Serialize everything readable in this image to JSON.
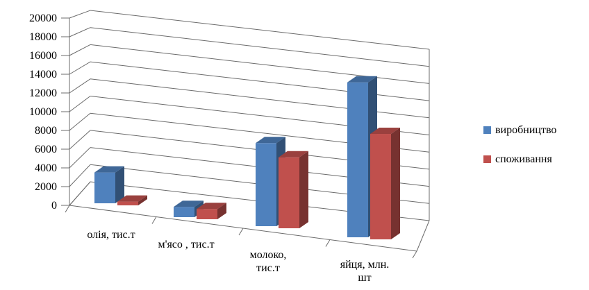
{
  "chart_data": {
    "type": "bar",
    "title": "",
    "xlabel": "",
    "ylabel": "",
    "ylim": [
      0,
      20000
    ],
    "yticks": [
      0,
      2000,
      4000,
      6000,
      8000,
      10000,
      12000,
      14000,
      16000,
      18000,
      20000
    ],
    "grid": true,
    "legend_position": "right",
    "categories": [
      [
        "олія, тис.т"
      ],
      [
        "м'ясо , тис.т"
      ],
      [
        "молоко,",
        "тис.т"
      ],
      [
        "яйця, млн.",
        "шт"
      ]
    ],
    "series": [
      {
        "name": "виробництво",
        "color": "#4F81BD",
        "values": [
          3300,
          1100,
          8900,
          16600
        ]
      },
      {
        "name": "споживання",
        "color": "#C0504D",
        "values": [
          400,
          1100,
          7600,
          11300
        ]
      }
    ]
  }
}
